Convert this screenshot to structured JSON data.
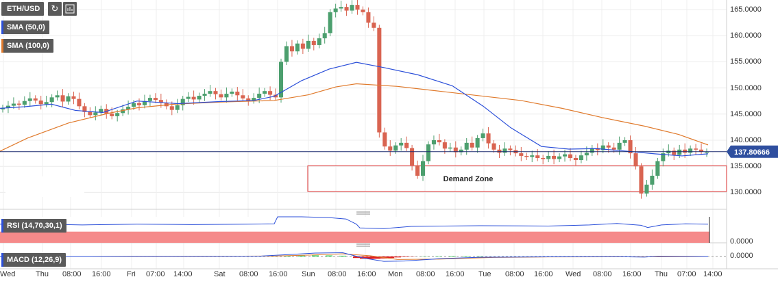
{
  "symbol": "ETH/USD",
  "indicators": {
    "sma50": "SMA (50,0)",
    "sma100": "SMA (100,0)",
    "rsi": "RSI (14,70,30,1)",
    "macd": "MACD (12,26,9)"
  },
  "icons": {
    "refresh": "refresh-icon",
    "chart_type": "bar-chart-icon",
    "pane_handle": "drag-handle-icon"
  },
  "colors": {
    "up": "#4c9f6e",
    "down": "#d96451",
    "sma50": "#2b4fd9",
    "sma100": "#e07a2c",
    "rsi_line": "#2b4fd9",
    "rsi_over": "#80f080",
    "rsi_under": "#f58a8a",
    "current_price_line": "#1a2a6e"
  },
  "chart_data": {
    "type": "candlestick",
    "ylabel": "",
    "price_range": [
      127,
      167
    ],
    "price_ticks": [
      "165.0000",
      "160.0000",
      "155.0000",
      "150.0000",
      "145.0000",
      "140.0000",
      "135.0000",
      "130.0000"
    ],
    "current_price": "137.80666",
    "time_labels": [
      "Wed",
      "Thu",
      "08:00",
      "16:00",
      "Fri",
      "07:00",
      "14:00",
      "Sat",
      "08:00",
      "16:00",
      "Sun",
      "08:00",
      "16:00",
      "Mon",
      "08:00",
      "16:00",
      "Tue",
      "08:00",
      "16:00",
      "Wed",
      "08:00",
      "16:00",
      "Thu",
      "07:00",
      "14:00"
    ],
    "annotations": [
      {
        "text": "Demand Zone",
        "price_low": 130.2,
        "price_high": 135.1
      }
    ],
    "close_series": [
      146.2,
      146.6,
      147.0,
      146.8,
      147.5,
      148.0,
      147.6,
      146.9,
      147.3,
      148.2,
      148.6,
      147.4,
      148.4,
      147.9,
      146.5,
      145.4,
      144.8,
      145.3,
      146.0,
      145.1,
      144.6,
      145.2,
      145.9,
      146.4,
      147.1,
      146.7,
      147.5,
      148.1,
      147.7,
      147.2,
      146.5,
      145.8,
      146.7,
      147.9,
      148.3,
      147.8,
      148.5,
      148.9,
      149.4,
      148.8,
      148.2,
      148.9,
      149.3,
      148.6,
      148.0,
      147.6,
      148.1,
      148.9,
      149.4,
      148.7,
      148.2,
      155.0,
      158.0,
      157.0,
      158.5,
      157.5,
      159.0,
      158.2,
      159.5,
      160.5,
      164.5,
      165.2,
      165.5,
      164.8,
      165.9,
      165.0,
      164.5,
      162.5,
      161.5,
      141.5,
      138.8,
      138.0,
      139.0,
      139.5,
      138.5,
      135.2,
      133.2,
      136.0,
      139.2,
      140.0,
      139.6,
      138.4,
      138.6,
      137.7,
      138.2,
      139.5,
      138.6,
      140.4,
      141.3,
      139.4,
      138.2,
      137.6,
      138.4,
      138.1,
      137.5,
      137.0,
      136.8,
      137.1,
      136.6,
      136.4,
      137.0,
      136.4,
      136.9,
      137.3,
      136.6,
      136.2,
      137.1,
      137.6,
      138.5,
      138.1,
      139.0,
      138.6,
      138.2,
      139.5,
      140.0,
      137.5,
      135.0,
      129.8,
      131.5,
      133.2,
      136.0,
      137.5,
      138.0,
      137.2,
      138.2,
      137.6,
      138.4,
      138.2,
      137.8,
      137.8066
    ],
    "sma50": [
      [
        0,
        146.1
      ],
      [
        35,
        146.4
      ],
      [
        75,
        146.9
      ],
      [
        110,
        145.7
      ],
      [
        150,
        145.3
      ],
      [
        200,
        147.5
      ],
      [
        260,
        147.0
      ],
      [
        320,
        147.4
      ],
      [
        370,
        147.6
      ],
      [
        400,
        148.4
      ],
      [
        440,
        151.4
      ],
      [
        480,
        153.6
      ],
      [
        520,
        154.9
      ],
      [
        560,
        153.9
      ],
      [
        610,
        152.5
      ],
      [
        660,
        150.4
      ],
      [
        705,
        146.5
      ],
      [
        745,
        142.4
      ],
      [
        790,
        138.8
      ],
      [
        830,
        138.3
      ],
      [
        870,
        138.4
      ],
      [
        915,
        137.9
      ],
      [
        955,
        137.4
      ],
      [
        995,
        137.0
      ],
      [
        1033,
        137.4
      ]
    ],
    "sma100": [
      [
        0,
        137.9
      ],
      [
        40,
        140.4
      ],
      [
        100,
        143.3
      ],
      [
        160,
        145.2
      ],
      [
        200,
        146.2
      ],
      [
        255,
        146.9
      ],
      [
        320,
        147.3
      ],
      [
        400,
        147.6
      ],
      [
        450,
        148.7
      ],
      [
        490,
        150.2
      ],
      [
        520,
        150.8
      ],
      [
        580,
        150.3
      ],
      [
        640,
        149.4
      ],
      [
        700,
        148.5
      ],
      [
        760,
        147.6
      ],
      [
        820,
        146.1
      ],
      [
        880,
        144.3
      ],
      [
        940,
        142.7
      ],
      [
        990,
        141.1
      ],
      [
        1033,
        139.1
      ]
    ],
    "rsi": {
      "overbought": 70,
      "oversold": 30,
      "values": [
        [
          0,
          50
        ],
        [
          60,
          50
        ],
        [
          120,
          48
        ],
        [
          200,
          50
        ],
        [
          280,
          49
        ],
        [
          360,
          50
        ],
        [
          400,
          51
        ],
        [
          405,
          70
        ],
        [
          440,
          70
        ],
        [
          480,
          68
        ],
        [
          505,
          64
        ],
        [
          520,
          50
        ],
        [
          525,
          40
        ],
        [
          560,
          38
        ],
        [
          600,
          44
        ],
        [
          700,
          46
        ],
        [
          800,
          45
        ],
        [
          860,
          48
        ],
        [
          900,
          52
        ],
        [
          935,
          47
        ],
        [
          945,
          41
        ],
        [
          965,
          48
        ],
        [
          1000,
          51
        ],
        [
          1033,
          50
        ]
      ],
      "level_label": "0.0000"
    },
    "macd": {
      "level_label": "0.0000",
      "macd_line": [
        [
          0,
          0
        ],
        [
          100,
          0
        ],
        [
          200,
          0.2
        ],
        [
          300,
          0.3
        ],
        [
          380,
          0.5
        ],
        [
          420,
          2.5
        ],
        [
          460,
          4.5
        ],
        [
          500,
          5.0
        ],
        [
          530,
          -2
        ],
        [
          560,
          -6.5
        ],
        [
          590,
          -6
        ],
        [
          640,
          -3
        ],
        [
          700,
          -1
        ],
        [
          800,
          -0.5
        ],
        [
          900,
          -0.2
        ],
        [
          940,
          -0.8
        ],
        [
          960,
          0.3
        ],
        [
          1033,
          0
        ]
      ],
      "signal_line": [
        [
          0,
          0
        ],
        [
          100,
          0
        ],
        [
          200,
          0.1
        ],
        [
          300,
          0.2
        ],
        [
          400,
          0.6
        ],
        [
          450,
          1.8
        ],
        [
          500,
          3.5
        ],
        [
          540,
          1.0
        ],
        [
          580,
          -4
        ],
        [
          640,
          -3.5
        ],
        [
          720,
          -1.2
        ],
        [
          800,
          -0.6
        ],
        [
          940,
          -0.4
        ],
        [
          1033,
          0
        ]
      ],
      "histogram": [
        [
          400,
          0.3
        ],
        [
          420,
          0.8
        ],
        [
          440,
          1.2
        ],
        [
          460,
          1.5
        ],
        [
          480,
          1.4
        ],
        [
          500,
          1.0
        ],
        [
          520,
          -2.0
        ],
        [
          530,
          -3.0
        ],
        [
          540,
          -3.2
        ],
        [
          550,
          -3.0
        ],
        [
          560,
          -2.6
        ],
        [
          570,
          -2.0
        ],
        [
          580,
          -1.2
        ],
        [
          590,
          -0.6
        ],
        [
          600,
          -0.3
        ],
        [
          620,
          0.3
        ],
        [
          640,
          0.5
        ],
        [
          660,
          0.7
        ],
        [
          680,
          0.6
        ],
        [
          700,
          0.4
        ],
        [
          940,
          -0.4
        ],
        [
          960,
          0.3
        ]
      ]
    }
  }
}
